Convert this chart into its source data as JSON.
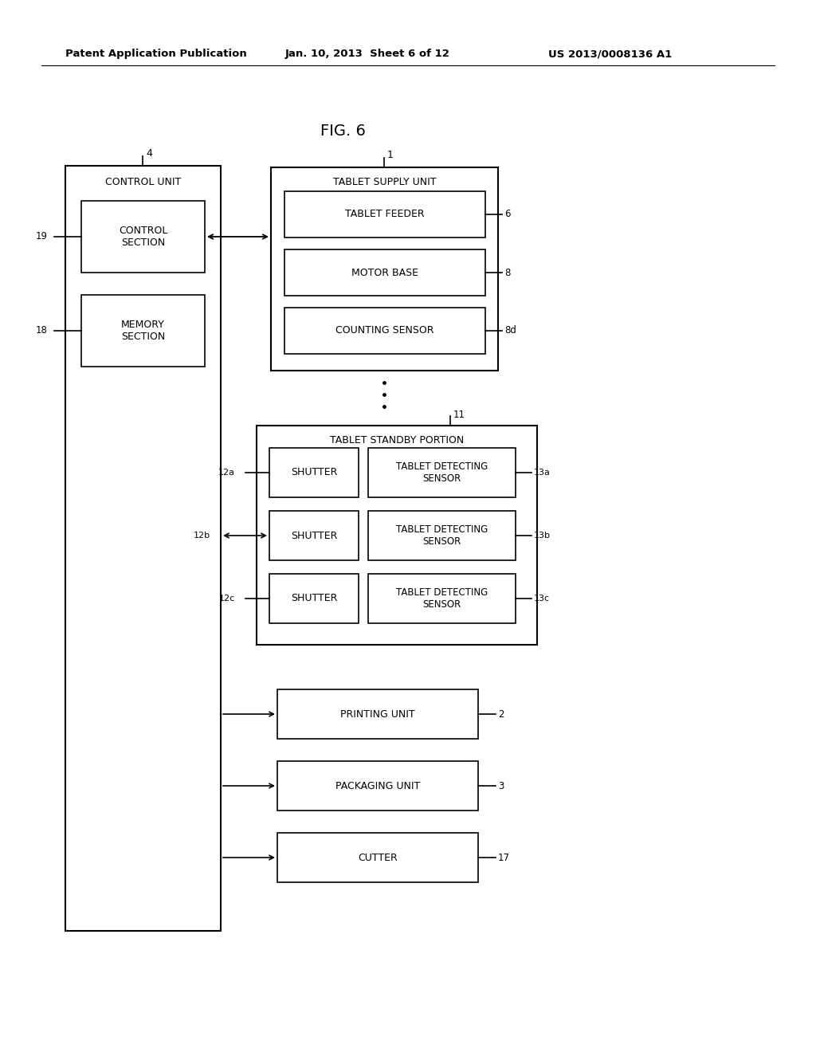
{
  "title": "FIG. 6",
  "header_left": "Patent Application Publication",
  "header_mid": "Jan. 10, 2013  Sheet 6 of 12",
  "header_right": "US 2013/0008136 A1",
  "bg_color": "#ffffff",
  "line_color": "#000000",
  "text_color": "#000000",
  "fig_width": 10.24,
  "fig_height": 13.2,
  "dpi": 100
}
